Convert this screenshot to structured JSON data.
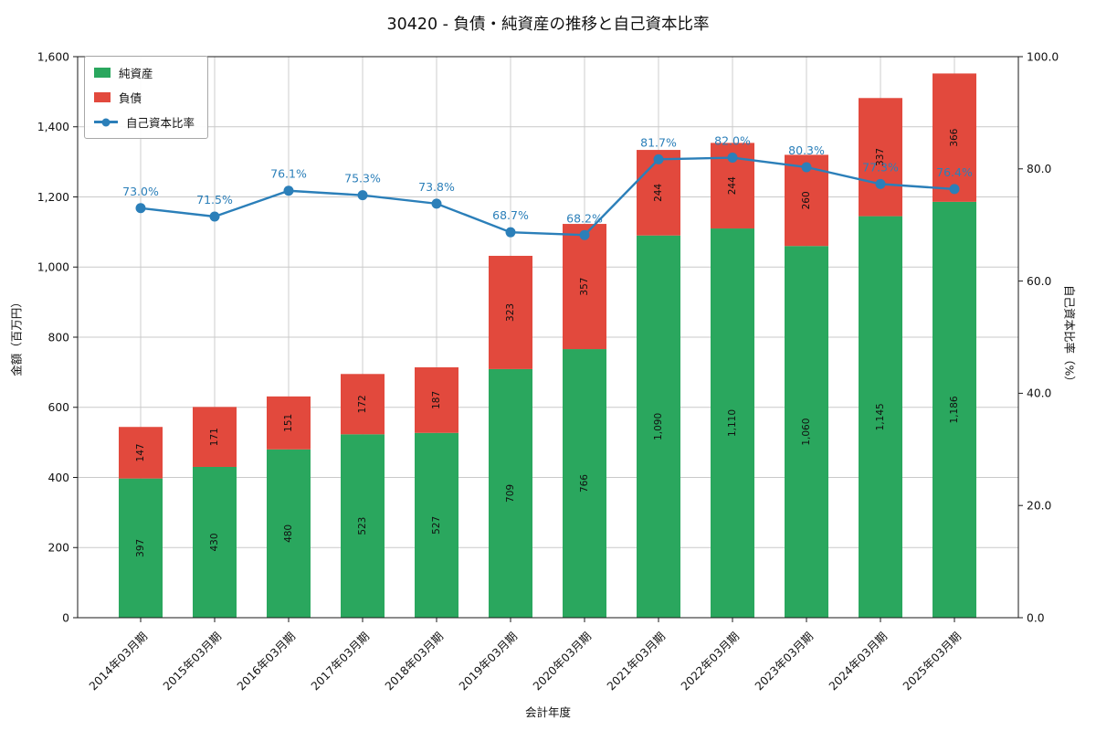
{
  "chart_data": {
    "type": "bar",
    "stacked": true,
    "title": "30420 - 負債・純資産の推移と自己資本比率",
    "xlabel": "会計年度",
    "ylabel_left": "金額（百万円）",
    "ylabel_right": "自己資本比率（%）",
    "categories": [
      "2014年03月期",
      "2015年03月期",
      "2016年03月期",
      "2017年03月期",
      "2018年03月期",
      "2019年03月期",
      "2020年03月期",
      "2021年03月期",
      "2022年03月期",
      "2023年03月期",
      "2024年03月期",
      "2025年03月期"
    ],
    "series": [
      {
        "name": "純資産",
        "color": "#2aa75e",
        "values": [
          397,
          430,
          480,
          523,
          527,
          709,
          766,
          1090,
          1110,
          1060,
          1145,
          1186
        ],
        "labels": [
          "397",
          "430",
          "480",
          "523",
          "527",
          "709",
          "766",
          "1,090",
          "1,110",
          "1,060",
          "1,145",
          "1,186"
        ]
      },
      {
        "name": "負債",
        "color": "#e2493d",
        "values": [
          147,
          171,
          151,
          172,
          187,
          323,
          357,
          244,
          244,
          260,
          337,
          366
        ],
        "labels": [
          "147",
          "171",
          "151",
          "172",
          "187",
          "323",
          "357",
          "244",
          "244",
          "260",
          "337",
          "366"
        ]
      }
    ],
    "line_series": {
      "name": "自己資本比率",
      "color": "#2b7fb9",
      "axis": "right",
      "values": [
        73.0,
        71.5,
        76.1,
        75.3,
        73.8,
        68.7,
        68.2,
        81.7,
        82.0,
        80.3,
        77.3,
        76.4
      ],
      "labels": [
        "73.0%",
        "71.5%",
        "76.1%",
        "75.3%",
        "73.8%",
        "68.7%",
        "68.2%",
        "81.7%",
        "82.0%",
        "80.3%",
        "77.3%",
        "76.4%"
      ]
    },
    "ylim_left": [
      0,
      1600
    ],
    "yticks_left": {
      "values": [
        0,
        200,
        400,
        600,
        800,
        1000,
        1200,
        1400,
        1600
      ],
      "labels": [
        "0",
        "200",
        "400",
        "600",
        "800",
        "1,000",
        "1,200",
        "1,400",
        "1,600"
      ]
    },
    "ylim_right": [
      0,
      100
    ],
    "yticks_right": {
      "values": [
        0,
        20,
        40,
        60,
        80,
        100
      ],
      "labels": [
        "0.0",
        "20.0",
        "40.0",
        "60.0",
        "80.0",
        "100.0"
      ]
    },
    "grid": true,
    "legend_position": "upper-left"
  }
}
